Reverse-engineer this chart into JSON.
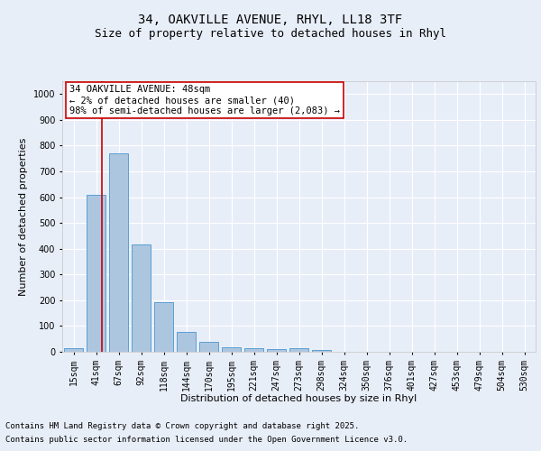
{
  "title_line1": "34, OAKVILLE AVENUE, RHYL, LL18 3TF",
  "title_line2": "Size of property relative to detached houses in Rhyl",
  "xlabel": "Distribution of detached houses by size in Rhyl",
  "ylabel": "Number of detached properties",
  "categories": [
    "15sqm",
    "41sqm",
    "67sqm",
    "92sqm",
    "118sqm",
    "144sqm",
    "170sqm",
    "195sqm",
    "221sqm",
    "247sqm",
    "273sqm",
    "298sqm",
    "324sqm",
    "350sqm",
    "376sqm",
    "401sqm",
    "427sqm",
    "453sqm",
    "479sqm",
    "504sqm",
    "530sqm"
  ],
  "values": [
    15,
    608,
    770,
    415,
    192,
    78,
    38,
    18,
    15,
    10,
    13,
    8,
    0,
    0,
    0,
    0,
    0,
    0,
    0,
    0,
    0
  ],
  "bar_color": "#adc6e0",
  "bar_edge_color": "#5a9fd4",
  "red_line_x": 1.27,
  "annotation_text": "34 OAKVILLE AVENUE: 48sqm\n← 2% of detached houses are smaller (40)\n98% of semi-detached houses are larger (2,083) →",
  "annotation_box_color": "#ffffff",
  "annotation_box_edge_color": "#cc0000",
  "ylim": [
    0,
    1050
  ],
  "yticks": [
    0,
    100,
    200,
    300,
    400,
    500,
    600,
    700,
    800,
    900,
    1000
  ],
  "footer_line1": "Contains HM Land Registry data © Crown copyright and database right 2025.",
  "footer_line2": "Contains public sector information licensed under the Open Government Licence v3.0.",
  "background_color": "#e8eef8",
  "plot_bg_color": "#e8eef8",
  "grid_color": "#ffffff",
  "title_fontsize": 10,
  "subtitle_fontsize": 9,
  "axis_label_fontsize": 8,
  "tick_fontsize": 7,
  "annotation_fontsize": 7.5,
  "footer_fontsize": 6.5
}
